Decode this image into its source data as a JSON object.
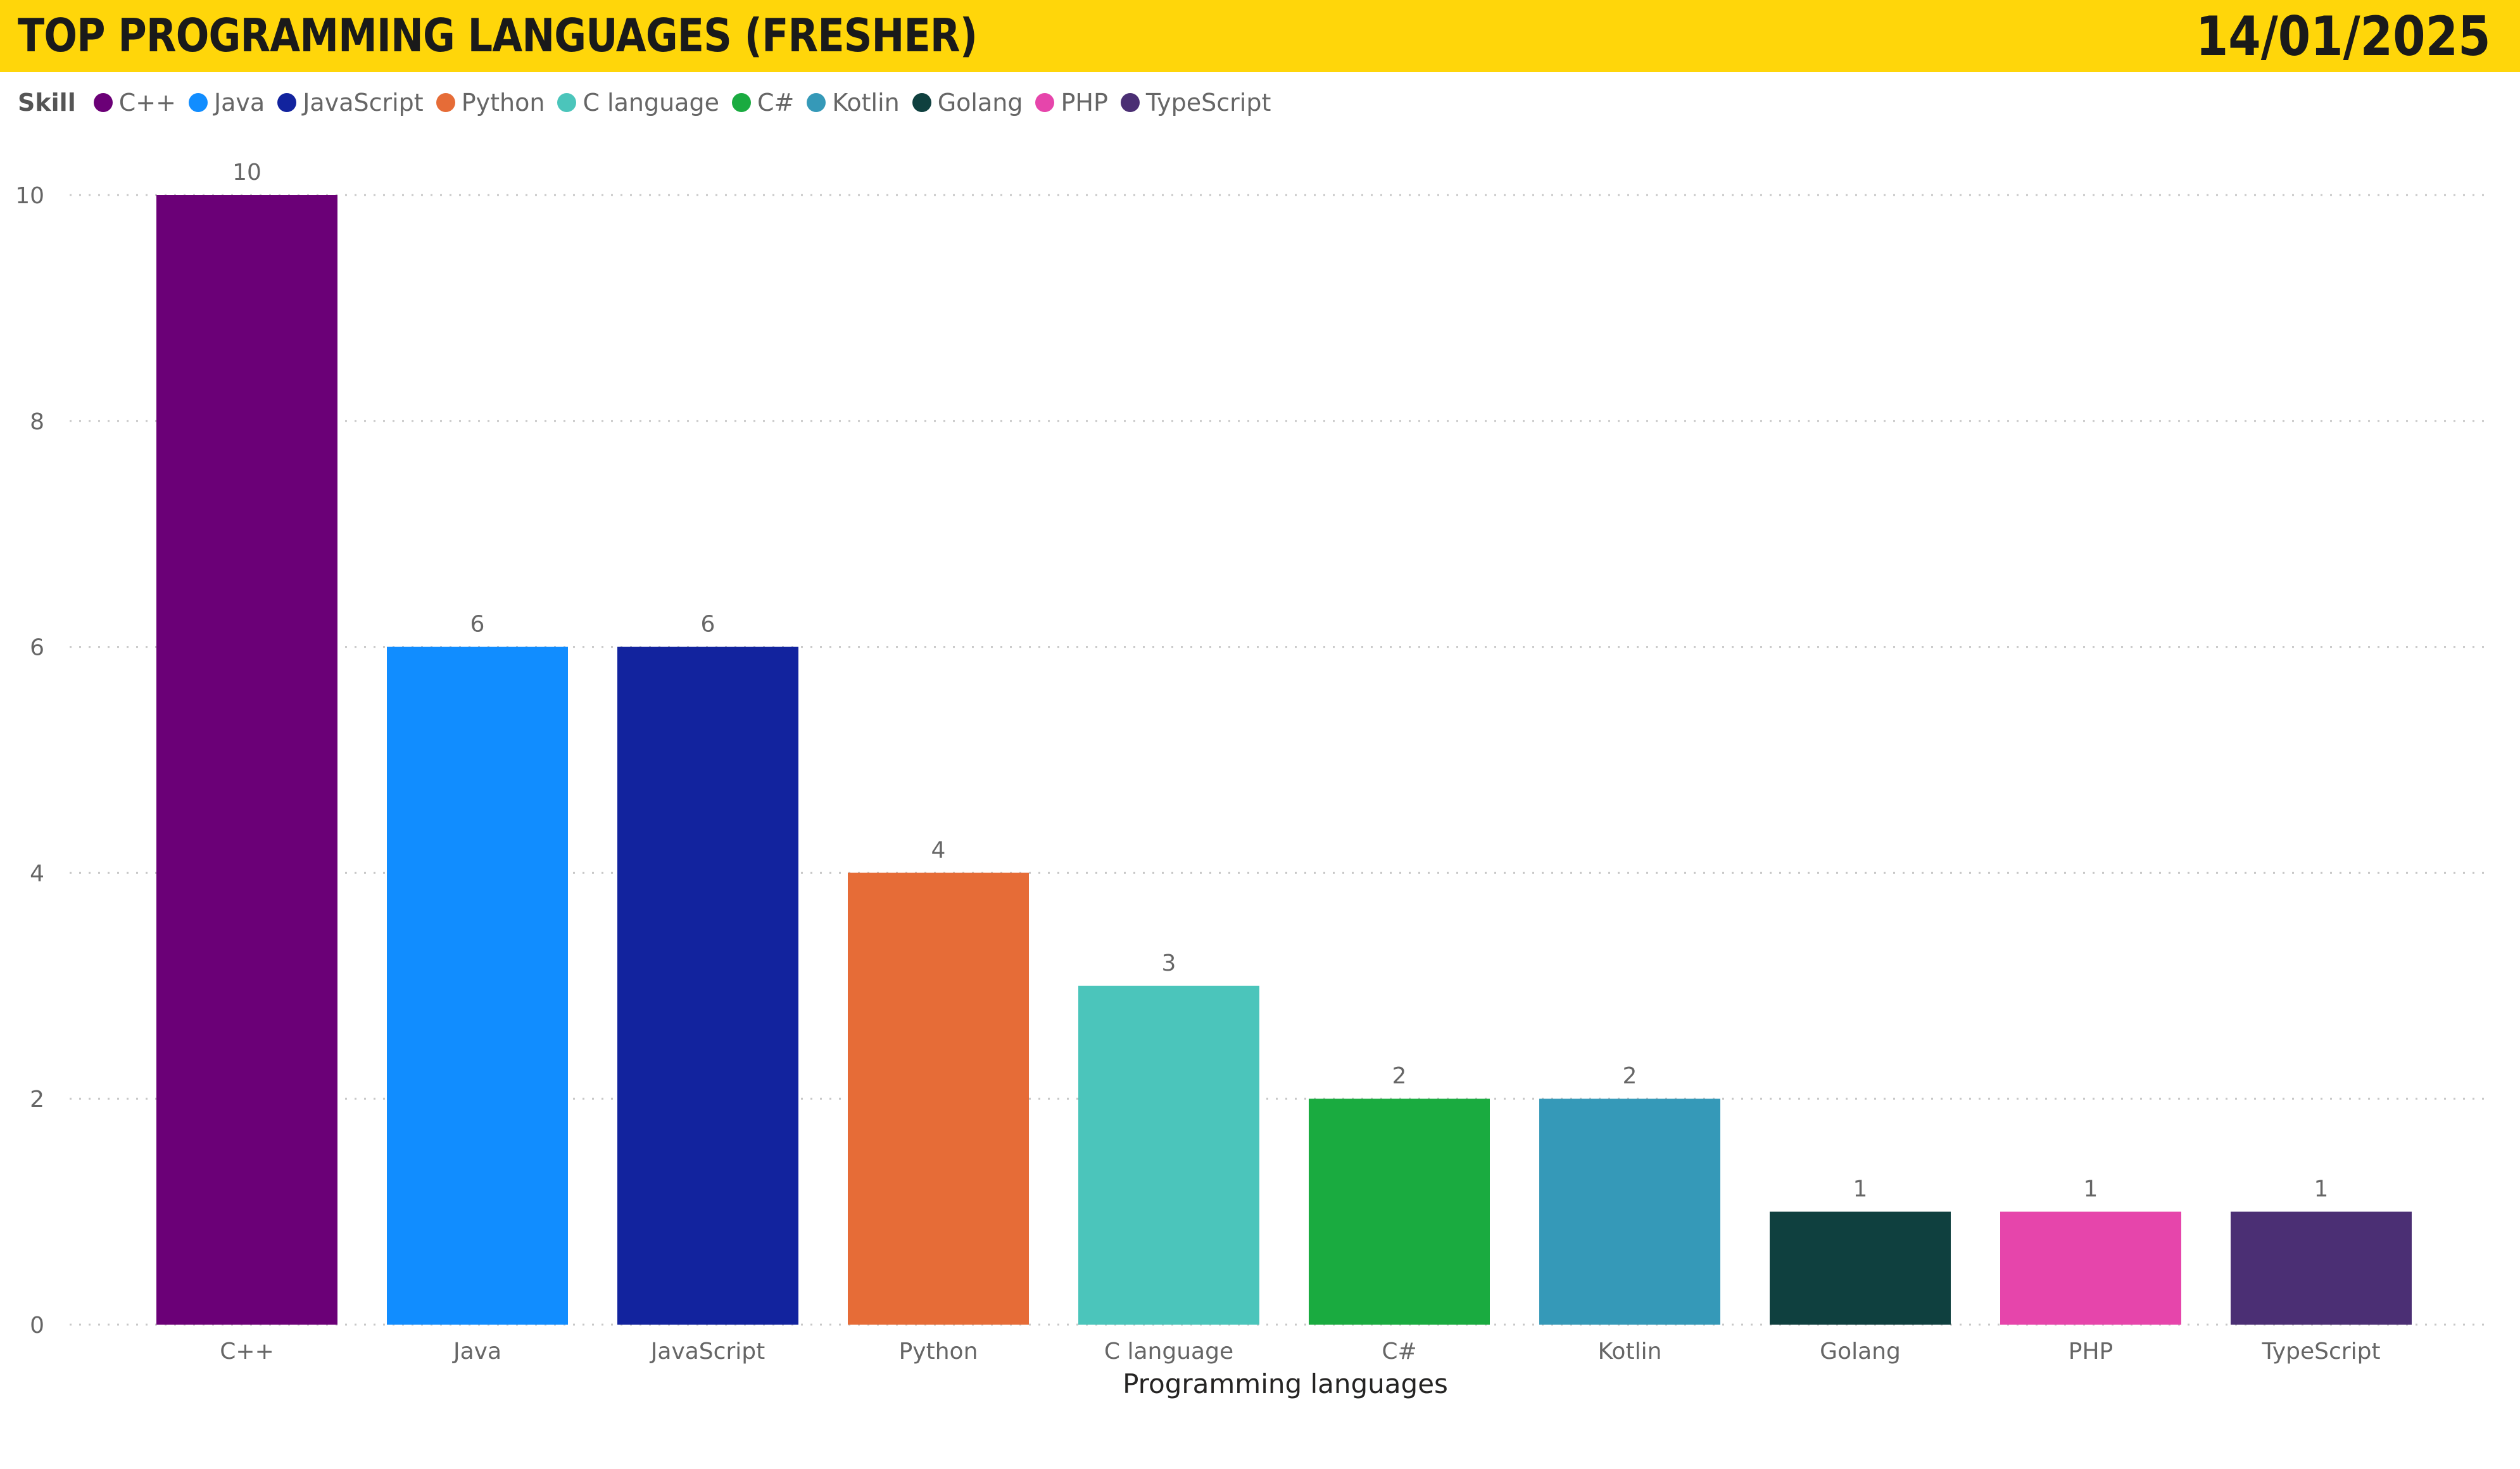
{
  "header": {
    "title": "TOP PROGRAMMING LANGUAGES (FRESHER)",
    "date": "14/01/2025"
  },
  "legend": {
    "title": "Skill"
  },
  "chart_data": {
    "type": "bar",
    "xlabel": "Programming languages",
    "ylabel": "",
    "ylim": [
      0,
      10
    ],
    "yticks": [
      0,
      2,
      4,
      6,
      8,
      10
    ],
    "grid": true,
    "legend_position": "top-left",
    "categories": [
      "C++",
      "Java",
      "JavaScript",
      "Python",
      "C language",
      "C#",
      "Kotlin",
      "Golang",
      "PHP",
      "TypeScript"
    ],
    "values": [
      10,
      6,
      6,
      4,
      3,
      2,
      2,
      1,
      1,
      1
    ],
    "colors": [
      "#6B0077",
      "#118DFF",
      "#12239E",
      "#E66C37",
      "#4BC5BB",
      "#1AAB40",
      "#3599B8",
      "#0F403F",
      "#E645AB",
      "#4B2F74"
    ]
  }
}
